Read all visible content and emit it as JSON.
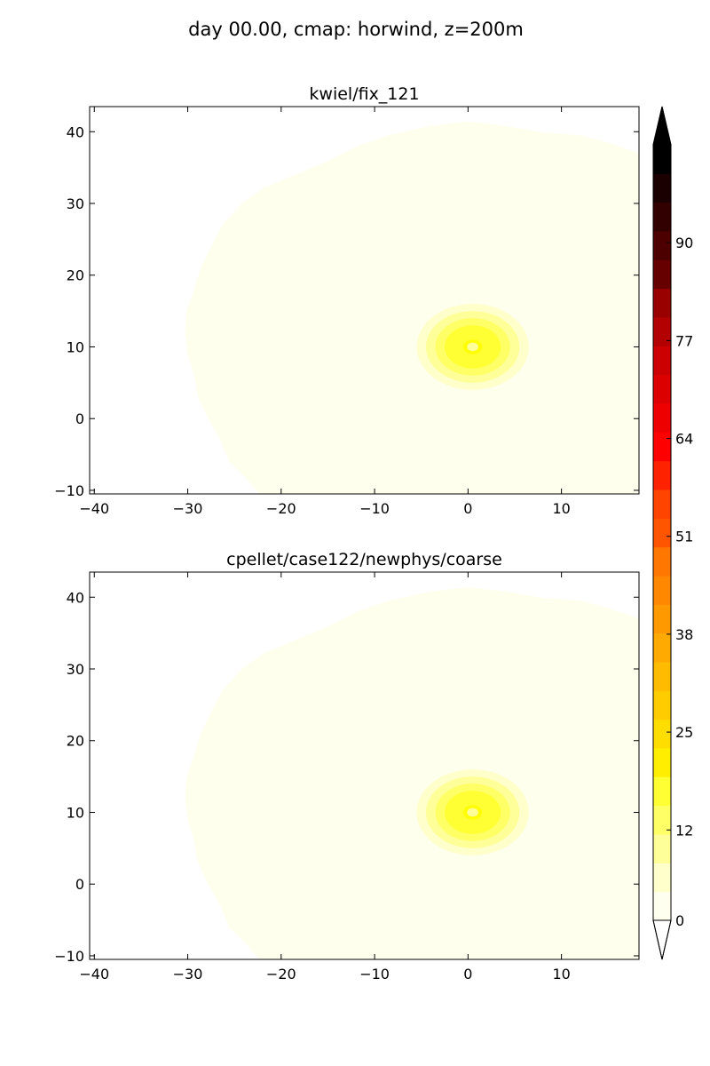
{
  "figure_title": "day 00.00, cmap: horwind, z=200m",
  "colors": {
    "background_field": "#ffffee",
    "levels": [
      "#ffffff",
      "#fffff0",
      "#ffffcc",
      "#ffff99",
      "#ffff66",
      "#ffff33",
      "#ffff00",
      "#ffee00",
      "#ffdd00",
      "#ffcc00",
      "#ffbb00",
      "#ffaa00",
      "#ff9900",
      "#ff8800",
      "#ff7700",
      "#ff6600",
      "#ff5500",
      "#ff4400",
      "#ff2200",
      "#ff0000",
      "#ee0000",
      "#dd0000",
      "#cc0000",
      "#b30000",
      "#990000",
      "#800000",
      "#660000",
      "#4d0000",
      "#330000",
      "#1a0000",
      "#000000"
    ]
  },
  "chart_data": [
    {
      "type": "heatmap",
      "title": "kwiel/fix_121",
      "xlim": [
        -40.5,
        18.3
      ],
      "ylim": [
        -10.5,
        43.5
      ],
      "x_ticks": [
        "−40",
        "−30",
        "−20",
        "−10",
        "0",
        "10"
      ],
      "x_tick_values": [
        -40,
        -30,
        -20,
        -10,
        0,
        10
      ],
      "y_ticks": [
        "−10",
        "0",
        "10",
        "20",
        "30",
        "40"
      ],
      "y_tick_values": [
        -10,
        0,
        10,
        20,
        30,
        40
      ],
      "field_boundary": [
        [
          -22.3,
          -10.5
        ],
        [
          -24,
          -8
        ],
        [
          -25.6,
          -6
        ],
        [
          -26.5,
          -3
        ],
        [
          -27.8,
          0
        ],
        [
          -28.9,
          3
        ],
        [
          -29.3,
          6
        ],
        [
          -30,
          9
        ],
        [
          -30.3,
          12
        ],
        [
          -30.1,
          15
        ],
        [
          -29.3,
          18
        ],
        [
          -28.6,
          21
        ],
        [
          -27.5,
          24
        ],
        [
          -26.3,
          27
        ],
        [
          -24.2,
          30
        ],
        [
          -21.8,
          32.2
        ],
        [
          -18.5,
          34
        ],
        [
          -14.8,
          36
        ],
        [
          -11.8,
          38
        ],
        [
          -8.5,
          39.5
        ],
        [
          -4,
          40.8
        ],
        [
          0,
          41.4
        ],
        [
          4,
          40.8
        ],
        [
          8,
          39.9
        ],
        [
          12,
          39.5
        ],
        [
          15,
          38.5
        ],
        [
          18.3,
          37
        ]
      ],
      "vortex": {
        "center": [
          0.5,
          10
        ],
        "max_speed_approx": 20,
        "ring_radii": [
          6,
          5,
          4,
          3,
          1
        ]
      }
    },
    {
      "type": "heatmap",
      "title": "cpellet/case122/newphys/coarse",
      "xlim": [
        -40.5,
        18.3
      ],
      "ylim": [
        -10.5,
        43.5
      ],
      "x_ticks": [
        "−40",
        "−30",
        "−20",
        "−10",
        "0",
        "10"
      ],
      "x_tick_values": [
        -40,
        -30,
        -20,
        -10,
        0,
        10
      ],
      "y_ticks": [
        "−10",
        "0",
        "10",
        "20",
        "30",
        "40"
      ],
      "y_tick_values": [
        -10,
        0,
        10,
        20,
        30,
        40
      ],
      "field_boundary": [
        [
          -22.3,
          -10.5
        ],
        [
          -24,
          -8
        ],
        [
          -25.6,
          -6
        ],
        [
          -26.5,
          -3
        ],
        [
          -27.8,
          0
        ],
        [
          -28.9,
          3
        ],
        [
          -29.3,
          6
        ],
        [
          -30,
          9
        ],
        [
          -30.3,
          12
        ],
        [
          -30.1,
          15
        ],
        [
          -29.3,
          18
        ],
        [
          -28.6,
          21
        ],
        [
          -27.5,
          24
        ],
        [
          -26.3,
          27
        ],
        [
          -24.2,
          30
        ],
        [
          -21.8,
          32.2
        ],
        [
          -18.5,
          34
        ],
        [
          -14.8,
          36
        ],
        [
          -11.8,
          38
        ],
        [
          -8.5,
          39.5
        ],
        [
          -4,
          40.8
        ],
        [
          0,
          41.4
        ],
        [
          4,
          40.8
        ],
        [
          8,
          39.9
        ],
        [
          12,
          39.5
        ],
        [
          15,
          38.5
        ],
        [
          18.3,
          37
        ]
      ],
      "vortex": {
        "center": [
          0.5,
          10
        ],
        "max_speed_approx": 20,
        "ring_radii": [
          6,
          5,
          4,
          3,
          1
        ]
      }
    }
  ],
  "colorbar": {
    "tick_labels": [
      "0",
      "12",
      "25",
      "38",
      "51",
      "64",
      "77",
      "90"
    ],
    "tick_values": [
      0,
      12,
      25,
      38,
      51,
      64,
      77,
      90
    ],
    "range": [
      0,
      103
    ],
    "n_levels": 27,
    "extend": "both"
  }
}
